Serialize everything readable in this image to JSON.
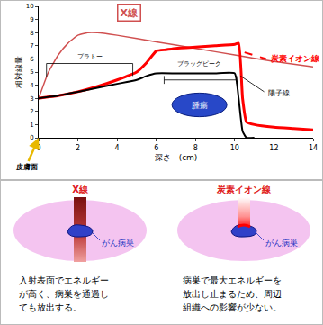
{
  "chart_data": {
    "type": "line",
    "x_label": "深さ　(cm)",
    "y_label": "相対線量",
    "xlim": [
      0,
      14
    ],
    "xticks": [
      0,
      2,
      4,
      6,
      8,
      10,
      12,
      14
    ],
    "ylim": [
      0,
      10
    ],
    "yticks": [
      0,
      1,
      2,
      3,
      4,
      5,
      6,
      7,
      8,
      9,
      10
    ],
    "grid": false,
    "series": [
      {
        "name": "X線",
        "color": "#d05050",
        "line_style": "solid",
        "x": [
          0,
          0.5,
          1,
          1.5,
          2,
          2.5,
          3,
          4,
          6,
          8,
          10,
          12,
          14
        ],
        "values": [
          3,
          5.0,
          6.3,
          7.2,
          7.8,
          8.0,
          8.0,
          7.8,
          7.3,
          6.8,
          6.3,
          5.8,
          5.4
        ]
      },
      {
        "name": "炭素イオン線",
        "color": "#ff0000",
        "line_style": "solid",
        "x": [
          0,
          1,
          2,
          3,
          4,
          5,
          5.5,
          6,
          6.5,
          7,
          8,
          9,
          10,
          10.2,
          10.4,
          10.6,
          11,
          12,
          13,
          14
        ],
        "values": [
          3,
          3.2,
          3.5,
          3.9,
          4.4,
          5.0,
          5.7,
          6.6,
          6.7,
          6.8,
          6.9,
          7.0,
          7.1,
          7.2,
          3.0,
          1.2,
          1.0,
          0.8,
          0.7,
          0.6
        ]
      },
      {
        "name": "陽子線",
        "color": "#000000",
        "line_style": "solid",
        "x": [
          0,
          1,
          2,
          3,
          4,
          5,
          5.5,
          6,
          7,
          8,
          9,
          10,
          10.2,
          10.4,
          10.6,
          11
        ],
        "values": [
          3,
          3.2,
          3.5,
          3.8,
          4.1,
          4.4,
          4.7,
          4.9,
          4.9,
          4.9,
          4.9,
          4.9,
          3.0,
          0.5,
          0,
          0
        ]
      }
    ],
    "annotations": [
      "プラトー",
      "ブラッグピーク",
      "腫瘍",
      "皮膚面"
    ]
  },
  "diagram": {
    "panels": [
      {
        "beam": "X線",
        "lesion": "がん病巣",
        "caption": [
          "入射表面でエネルギー",
          "が高く、病巣を通過し",
          "ても放出する。"
        ]
      },
      {
        "beam": "炭素イオン線",
        "lesion": "がん病巣",
        "caption": [
          "病巣で最大エネルギーを",
          "放出し止まるため、周辺",
          "組織への影響が少ない。"
        ]
      }
    ]
  }
}
